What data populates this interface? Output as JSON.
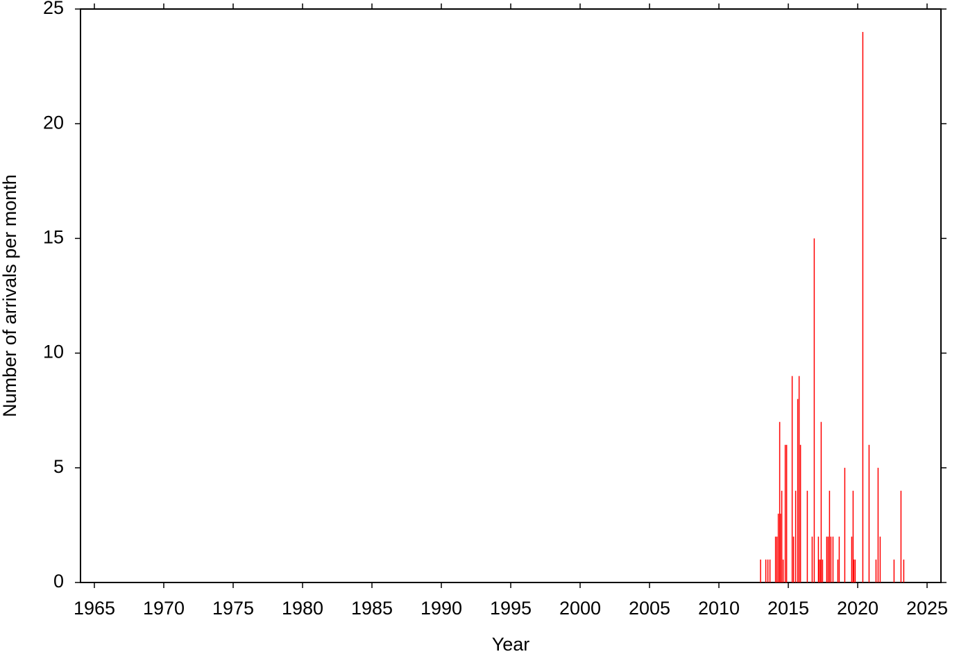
{
  "chart_data": {
    "type": "bar",
    "x_label": "Year",
    "y_label": "Number of arrivals per month",
    "x": [
      2013.0,
      2013.38,
      2013.53,
      2013.68,
      2014.08,
      2014.18,
      2014.28,
      2014.38,
      2014.43,
      2014.53,
      2014.63,
      2014.78,
      2014.88,
      2015.28,
      2015.38,
      2015.53,
      2015.68,
      2015.78,
      2015.88,
      2016.37,
      2016.72,
      2016.87,
      2017.17,
      2017.22,
      2017.32,
      2017.37,
      2017.47,
      2017.77,
      2017.87,
      2017.97,
      2018.07,
      2018.22,
      2018.57,
      2018.67,
      2019.07,
      2019.57,
      2019.67,
      2019.72,
      2019.82,
      2020.37,
      2020.82,
      2021.32,
      2021.47,
      2021.62,
      2022.62,
      2023.12,
      2023.32
    ],
    "values": [
      1,
      1,
      1,
      1,
      2,
      2,
      3,
      7,
      3,
      4,
      1,
      6,
      6,
      9,
      2,
      4,
      8,
      9,
      6,
      4,
      2,
      15,
      2,
      1,
      1,
      7,
      1,
      2,
      2,
      4,
      2,
      2,
      1,
      2,
      5,
      2,
      4,
      1,
      1,
      24,
      6,
      1,
      5,
      2,
      1,
      4,
      1
    ],
    "color": "#ff0000",
    "xlim": [
      1964,
      2026
    ],
    "xticks": [
      1965,
      1970,
      1975,
      1980,
      1985,
      1990,
      1995,
      2000,
      2005,
      2010,
      2015,
      2020,
      2025
    ],
    "ylim": [
      0,
      25
    ],
    "yticks": [
      0,
      5,
      10,
      15,
      20,
      25
    ],
    "grid": false
  }
}
